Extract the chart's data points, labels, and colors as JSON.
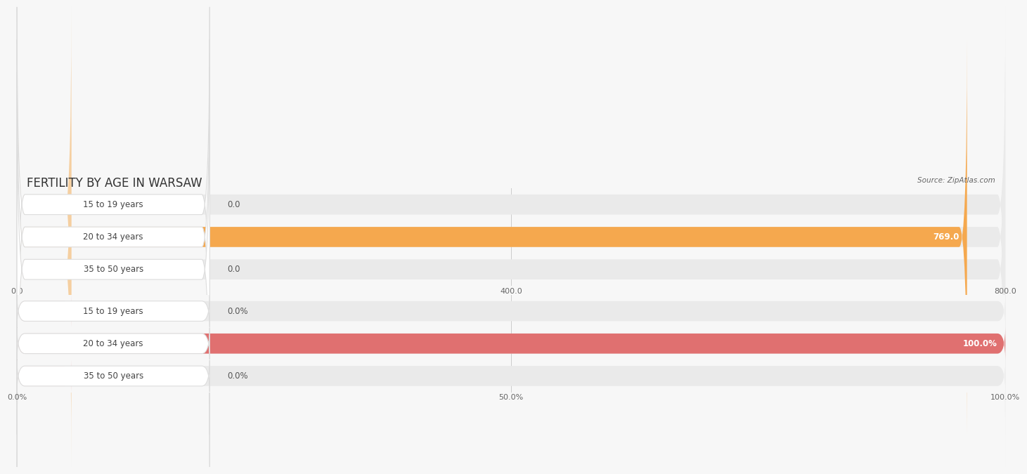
{
  "title": "FERTILITY BY AGE IN WARSAW",
  "source": "Source: ZipAtlas.com",
  "top_chart": {
    "categories": [
      "15 to 19 years",
      "20 to 34 years",
      "35 to 50 years"
    ],
    "values": [
      0.0,
      769.0,
      0.0
    ],
    "xlim": [
      0,
      800
    ],
    "xticks": [
      0.0,
      400.0,
      800.0
    ],
    "bar_color": "#F5A84E",
    "bar_bg_color": "#EAEAEA",
    "zero_bar_color": "#F5CFA0"
  },
  "bottom_chart": {
    "categories": [
      "15 to 19 years",
      "20 to 34 years",
      "35 to 50 years"
    ],
    "values": [
      0.0,
      100.0,
      0.0
    ],
    "xlim": [
      0,
      100
    ],
    "xticks": [
      0.0,
      50.0,
      100.0
    ],
    "xtick_labels": [
      "0.0%",
      "50.0%",
      "100.0%"
    ],
    "bar_color": "#E07070",
    "bar_bg_color": "#EAEAEA",
    "zero_bar_color": "#F0AAAA"
  },
  "background_color": "#F7F7F7",
  "bar_height": 0.62,
  "title_fontsize": 12,
  "label_fontsize": 8.5,
  "tick_fontsize": 8,
  "source_fontsize": 7.5
}
